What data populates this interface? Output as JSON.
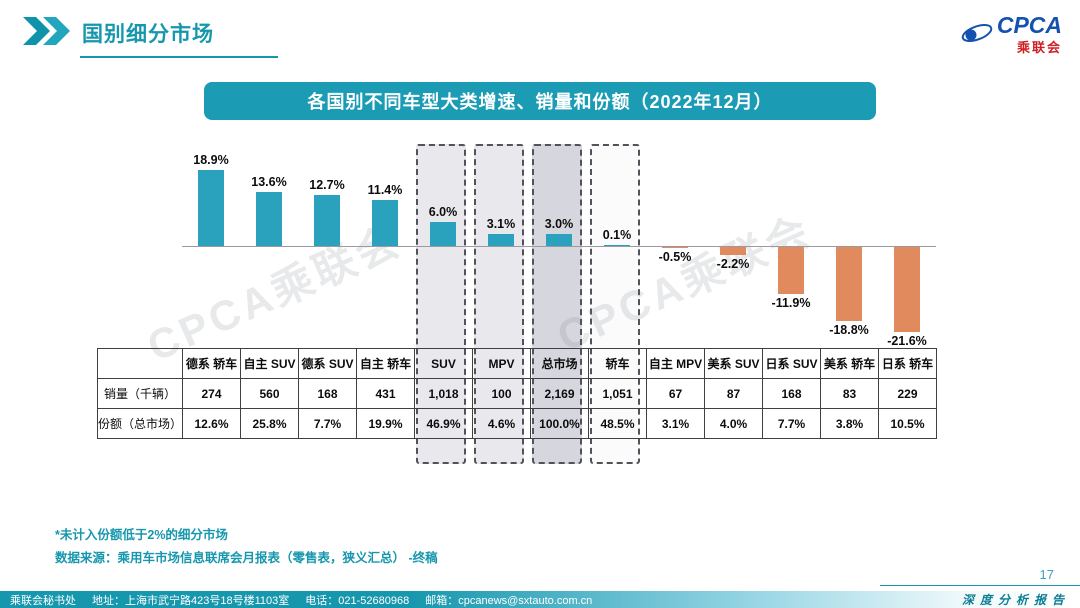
{
  "header": {
    "title": "国别细分市场",
    "logo": {
      "brand": "CPCA",
      "sub": "乘联会"
    }
  },
  "banner": {
    "title": "各国别不同车型大类增速、销量和份额（2022年12月）"
  },
  "chart_data": {
    "type": "bar",
    "title": "各国别不同车型大类增速、销量和份额（2022年12月）",
    "unit": "%",
    "categories": [
      "德系 轿车",
      "自主 SUV",
      "德系 SUV",
      "自主 轿车",
      "SUV",
      "MPV",
      "总市场",
      "轿车",
      "自主 MPV",
      "美系 SUV",
      "日系 SUV",
      "美系 轿车",
      "日系 轿车"
    ],
    "series": [
      {
        "name": "增速",
        "values": [
          18.9,
          13.6,
          12.7,
          11.4,
          6.0,
          3.1,
          3.0,
          0.1,
          -0.5,
          -2.2,
          -11.9,
          -18.8,
          -21.6
        ]
      },
      {
        "name": "销量（千辆）",
        "values": [
          "274",
          "560",
          "168",
          "431",
          "1,018",
          "100",
          "2,169",
          "1,051",
          "67",
          "87",
          "168",
          "83",
          "229"
        ]
      },
      {
        "name": "份额（总市场）",
        "values": [
          "12.6%",
          "25.8%",
          "7.7%",
          "19.9%",
          "46.9%",
          "4.6%",
          "100.0%",
          "48.5%",
          "3.1%",
          "4.0%",
          "7.7%",
          "3.8%",
          "10.5%"
        ]
      }
    ],
    "ylim": [
      -25,
      22
    ],
    "grid": false,
    "legend": "none",
    "highlighted_columns": [
      4,
      5,
      6,
      7
    ],
    "highlight_fills": [
      "#e9e9ed",
      "#e9e9ed",
      "#d6d6de",
      "#fbfbfc"
    ],
    "colors": {
      "positive": "#2aa2bd",
      "negative": "#e08a5e"
    }
  },
  "notes": {
    "line1": "*未计入份额低于2%的细分市场",
    "line2": "数据来源：乘用车市场信息联席会月报表（零售表，狭义汇总） -终稿"
  },
  "footer": {
    "page_number": "17",
    "report_label": "深度分析报告",
    "org": "乘联会秘书处",
    "address": "地址：上海市武宁路423号18号楼1103室",
    "phone": "电话：021-52680968",
    "email": "邮箱：cpcanews@sxtauto.com.cn"
  },
  "watermark": "CPCA乘联会"
}
